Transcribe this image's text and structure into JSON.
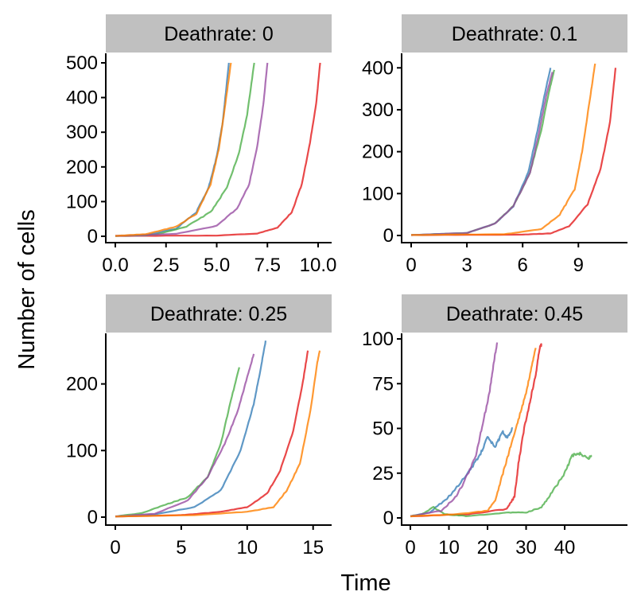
{
  "figure": {
    "xlabel": "Time",
    "ylabel": "Number of cells"
  },
  "colors": {
    "strip_background": "#c0c0c0",
    "series": [
      "#e41a1c",
      "#377eb8",
      "#4daf4a",
      "#984ea3",
      "#ff7f00"
    ]
  },
  "chart_data": [
    {
      "type": "line",
      "title": "Deathrate: 0",
      "xlim": [
        0,
        10.0
      ],
      "ylim": [
        0,
        500
      ],
      "x_ticks": [
        0,
        2.5,
        5,
        7.5,
        10
      ],
      "x_tick_labels": [
        "0.0",
        "2.5",
        "5.0",
        "7.5",
        "10.0"
      ],
      "y_ticks": [
        0,
        100,
        200,
        300,
        400,
        500
      ],
      "y_tick_labels": [
        "0",
        "100",
        "200",
        "300",
        "400",
        "500"
      ],
      "series": [
        {
          "color": "#e41a1c",
          "points": [
            [
              0,
              1
            ],
            [
              5,
              2
            ],
            [
              7,
              8
            ],
            [
              8,
              25
            ],
            [
              8.7,
              70
            ],
            [
              9.2,
              150
            ],
            [
              9.6,
              270
            ],
            [
              9.9,
              380
            ],
            [
              10.1,
              500
            ]
          ]
        },
        {
          "color": "#377eb8",
          "points": [
            [
              0,
              1
            ],
            [
              1.5,
              3
            ],
            [
              3,
              22
            ],
            [
              4,
              70
            ],
            [
              4.6,
              140
            ],
            [
              5,
              230
            ],
            [
              5.3,
              330
            ],
            [
              5.6,
              500
            ]
          ]
        },
        {
          "color": "#4daf4a",
          "points": [
            [
              0,
              1
            ],
            [
              2,
              5
            ],
            [
              3.5,
              28
            ],
            [
              4.7,
              70
            ],
            [
              5.5,
              140
            ],
            [
              6.1,
              240
            ],
            [
              6.5,
              350
            ],
            [
              6.85,
              500
            ]
          ]
        },
        {
          "color": "#984ea3",
          "points": [
            [
              0,
              1
            ],
            [
              3,
              7
            ],
            [
              5,
              30
            ],
            [
              6,
              80
            ],
            [
              6.6,
              150
            ],
            [
              7,
              260
            ],
            [
              7.3,
              380
            ],
            [
              7.5,
              500
            ]
          ]
        },
        {
          "color": "#ff7f00",
          "points": [
            [
              0,
              1
            ],
            [
              1.5,
              6
            ],
            [
              3,
              28
            ],
            [
              4,
              65
            ],
            [
              4.7,
              150
            ],
            [
              5.1,
              250
            ],
            [
              5.4,
              370
            ],
            [
              5.7,
              500
            ]
          ]
        }
      ]
    },
    {
      "type": "line",
      "title": "Deathrate: 0.1",
      "xlim": [
        0,
        11
      ],
      "ylim": [
        0,
        410
      ],
      "x_ticks": [
        0,
        3,
        6,
        9
      ],
      "x_tick_labels": [
        "0",
        "3",
        "6",
        "9"
      ],
      "y_ticks": [
        0,
        100,
        200,
        300,
        400
      ],
      "y_tick_labels": [
        "0",
        "100",
        "200",
        "300",
        "400"
      ],
      "series": [
        {
          "color": "#e41a1c",
          "points": [
            [
              0,
              1
            ],
            [
              6,
              2
            ],
            [
              7.5,
              5
            ],
            [
              8.5,
              22
            ],
            [
              9.5,
              75
            ],
            [
              10.2,
              160
            ],
            [
              10.7,
              270
            ],
            [
              11,
              400
            ]
          ]
        },
        {
          "color": "#377eb8",
          "points": [
            [
              0,
              1
            ],
            [
              3,
              6
            ],
            [
              4.5,
              28
            ],
            [
              5.5,
              70
            ],
            [
              6.3,
              150
            ],
            [
              6.8,
              250
            ],
            [
              7.2,
              340
            ],
            [
              7.5,
              400
            ]
          ]
        },
        {
          "color": "#4daf4a",
          "points": [
            [
              0,
              1
            ],
            [
              3,
              6
            ],
            [
              4.5,
              28
            ],
            [
              5.5,
              70
            ],
            [
              6.4,
              150
            ],
            [
              7,
              250
            ],
            [
              7.4,
              340
            ],
            [
              7.7,
              395
            ]
          ]
        },
        {
          "color": "#984ea3",
          "points": [
            [
              0,
              1
            ],
            [
              3,
              6
            ],
            [
              4.5,
              28
            ],
            [
              5.5,
              70
            ],
            [
              6.4,
              150
            ],
            [
              6.9,
              250
            ],
            [
              7.3,
              340
            ],
            [
              7.6,
              390
            ]
          ]
        },
        {
          "color": "#ff7f00",
          "points": [
            [
              0,
              1
            ],
            [
              5,
              3
            ],
            [
              7,
              15
            ],
            [
              8,
              50
            ],
            [
              8.8,
              110
            ],
            [
              9.2,
              200
            ],
            [
              9.6,
              320
            ],
            [
              9.9,
              410
            ]
          ]
        }
      ]
    },
    {
      "type": "line",
      "title": "Deathrate: 0.25",
      "xlim": [
        0,
        15.5
      ],
      "ylim": [
        0,
        270
      ],
      "x_ticks": [
        0,
        5,
        10,
        15
      ],
      "x_tick_labels": [
        "0",
        "5",
        "10",
        "15"
      ],
      "y_ticks": [
        0,
        100,
        200
      ],
      "y_tick_labels": [
        "0",
        "100",
        "200"
      ],
      "series": [
        {
          "color": "#e41a1c",
          "points": [
            [
              0,
              1
            ],
            [
              5,
              3
            ],
            [
              8,
              8
            ],
            [
              10,
              15
            ],
            [
              11.5,
              35
            ],
            [
              12.5,
              70
            ],
            [
              13.5,
              130
            ],
            [
              14.2,
              200
            ],
            [
              14.6,
              250
            ]
          ]
        },
        {
          "color": "#377eb8",
          "points": [
            [
              0,
              1
            ],
            [
              3,
              4
            ],
            [
              6,
              15
            ],
            [
              8,
              40
            ],
            [
              9.5,
              100
            ],
            [
              10.5,
              170
            ],
            [
              11,
              220
            ],
            [
              11.4,
              265
            ]
          ]
        },
        {
          "color": "#4daf4a",
          "points": [
            [
              0,
              1
            ],
            [
              2,
              6
            ],
            [
              4,
              20
            ],
            [
              5.5,
              30
            ],
            [
              7,
              60
            ],
            [
              8,
              110
            ],
            [
              8.7,
              170
            ],
            [
              9.4,
              225
            ]
          ]
        },
        {
          "color": "#984ea3",
          "points": [
            [
              0,
              1
            ],
            [
              3,
              5
            ],
            [
              5.5,
              25
            ],
            [
              7,
              60
            ],
            [
              8.3,
              110
            ],
            [
              9.3,
              160
            ],
            [
              10,
              210
            ],
            [
              10.5,
              245
            ]
          ]
        },
        {
          "color": "#ff7f00",
          "points": [
            [
              0,
              1
            ],
            [
              6,
              3
            ],
            [
              10,
              8
            ],
            [
              12,
              15
            ],
            [
              13,
              40
            ],
            [
              14,
              80
            ],
            [
              14.8,
              160
            ],
            [
              15.3,
              230
            ],
            [
              15.5,
              250
            ]
          ]
        }
      ]
    },
    {
      "type": "line",
      "title": "Deathrate: 0.45",
      "xlim": [
        0,
        47
      ],
      "ylim": [
        0,
        100
      ],
      "x_ticks": [
        0,
        10,
        20,
        30,
        40
      ],
      "x_tick_labels": [
        "0",
        "10",
        "20",
        "30",
        "40"
      ],
      "y_ticks": [
        0,
        25,
        50,
        75,
        100
      ],
      "y_tick_labels": [
        "0",
        "25",
        "50",
        "75",
        "100"
      ],
      "series": [
        {
          "color": "#e41a1c",
          "points": [
            [
              0,
              1
            ],
            [
              15,
              2
            ],
            [
              25,
              5
            ],
            [
              27,
              12
            ],
            [
              28,
              30
            ],
            [
              29.5,
              50
            ],
            [
              31,
              65
            ],
            [
              32.5,
              80
            ],
            [
              33.5,
              95
            ],
            [
              34,
              97
            ]
          ]
        },
        {
          "color": "#377eb8",
          "points": [
            [
              0,
              1
            ],
            [
              5,
              3
            ],
            [
              10,
              12
            ],
            [
              15,
              25
            ],
            [
              18,
              35
            ],
            [
              20,
              45
            ],
            [
              22,
              40
            ],
            [
              24,
              48
            ],
            [
              25,
              45
            ],
            [
              26.5,
              50
            ]
          ]
        },
        {
          "color": "#4daf4a",
          "points": [
            [
              0,
              1
            ],
            [
              3,
              2
            ],
            [
              6,
              6
            ],
            [
              9,
              2
            ],
            [
              15,
              1
            ],
            [
              25,
              3
            ],
            [
              30,
              3
            ],
            [
              34,
              6
            ],
            [
              37,
              15
            ],
            [
              40,
              25
            ],
            [
              42,
              35
            ],
            [
              44,
              36
            ],
            [
              46,
              33
            ],
            [
              47,
              35
            ]
          ]
        },
        {
          "color": "#984ea3",
          "points": [
            [
              0,
              1
            ],
            [
              8,
              4
            ],
            [
              12,
              12
            ],
            [
              15,
              25
            ],
            [
              17,
              35
            ],
            [
              19,
              55
            ],
            [
              20.5,
              70
            ],
            [
              21.5,
              85
            ],
            [
              22.5,
              98
            ]
          ]
        },
        {
          "color": "#ff7f00",
          "points": [
            [
              0,
              1
            ],
            [
              12,
              2
            ],
            [
              20,
              4
            ],
            [
              22,
              10
            ],
            [
              24,
              25
            ],
            [
              26,
              40
            ],
            [
              28,
              55
            ],
            [
              30,
              70
            ],
            [
              31.5,
              85
            ],
            [
              32.5,
              95
            ]
          ]
        }
      ]
    }
  ]
}
